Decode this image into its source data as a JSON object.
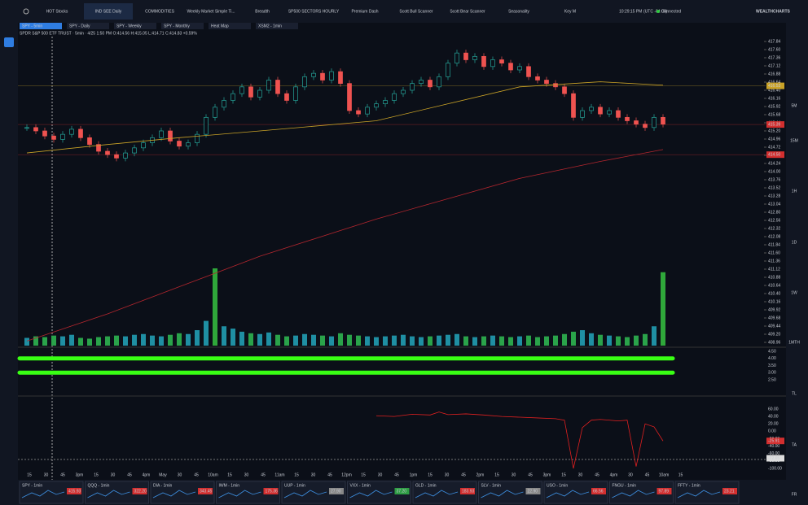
{
  "nav": {
    "tabs": [
      "HOT Stocks",
      "IND SEE Daily",
      "COMMODITIES",
      "Weekly Market Simple Ti...",
      "Breadth",
      "SP500 SECTORS HOURLY",
      "Premium Dash",
      "Scott Bull Scanner",
      "Scott Bear Scanner",
      "Seasonality",
      "Key M"
    ],
    "time": "10:29:15 PM",
    "timezone": "(UTC -04:00)",
    "status": "Connected",
    "brand": "WEALTHCHARTS"
  },
  "chart_tabs": [
    "SPY - 5min",
    "SPY - Daily",
    "SPY - Weekly",
    "SPY - Monthly",
    "Heat Map",
    "XSM2 - 1min"
  ],
  "info_line": "SPDR S&P 500 ETF TRUST · 5min · 4/25 1:50 PM O:414.56 H:415.05 L:414.71 C:414.83 +0.59%",
  "timeframes": [
    "5M",
    "15M",
    "1H",
    "1D",
    "1W",
    "1MTH",
    "TL",
    "TA",
    "FR"
  ],
  "chart_data": {
    "type": "candlestick",
    "closes": [
      415.3,
      415.2,
      415.05,
      414.95,
      415.1,
      415.25,
      415.0,
      414.8,
      414.6,
      414.5,
      414.4,
      414.55,
      414.7,
      414.85,
      415.0,
      415.2,
      414.9,
      414.75,
      414.85,
      415.1,
      415.6,
      415.9,
      416.1,
      416.3,
      416.5,
      416.2,
      416.4,
      416.7,
      416.3,
      416.1,
      416.5,
      416.8,
      416.9,
      416.7,
      416.95,
      416.6,
      415.8,
      415.7,
      415.9,
      416.0,
      416.1,
      416.3,
      416.4,
      416.6,
      416.7,
      416.5,
      416.8,
      417.2,
      417.5,
      417.3,
      417.4,
      417.1,
      417.3,
      417.2,
      417.0,
      417.1,
      416.8,
      416.7,
      416.6,
      416.5,
      416.3,
      415.6,
      415.8,
      415.9,
      415.7,
      415.8,
      415.6,
      415.5,
      415.4,
      415.3,
      415.6,
      415.4
    ],
    "volume": [
      10,
      12,
      11,
      13,
      12,
      14,
      10,
      9,
      11,
      12,
      13,
      12,
      14,
      15,
      13,
      12,
      14,
      16,
      15,
      20,
      32,
      100,
      25,
      22,
      18,
      16,
      15,
      17,
      14,
      12,
      13,
      15,
      14,
      13,
      12,
      16,
      14,
      13,
      12,
      11,
      12,
      13,
      14,
      12,
      11,
      12,
      13,
      14,
      15,
      12,
      11,
      12,
      13,
      12,
      11,
      12,
      13,
      11,
      12,
      13,
      15,
      18,
      20,
      16,
      14,
      13,
      12,
      11,
      13,
      15,
      25,
      95
    ],
    "ma_fast": {
      "x": [
        0,
        9,
        17,
        26,
        39,
        47,
        55,
        64,
        71
      ],
      "values": [
        414.55,
        414.8,
        415.0,
        415.2,
        415.5,
        416.0,
        416.5,
        416.65,
        416.55
      ]
    },
    "ma_slow": {
      "x": [
        0,
        9,
        17,
        26,
        39,
        47,
        55,
        64,
        71
      ],
      "values": [
        409.0,
        409.8,
        410.6,
        411.5,
        412.6,
        413.2,
        413.8,
        414.3,
        414.65
      ]
    },
    "yticks": [
      {
        "value": 417.84,
        "label": "417.84"
      },
      {
        "value": 417.6,
        "label": "417.60"
      },
      {
        "value": 417.36,
        "label": "417.36"
      },
      {
        "value": 417.12,
        "label": "417.12"
      },
      {
        "value": 416.88,
        "label": "416.88"
      },
      {
        "value": 416.64,
        "label": "416.64"
      },
      {
        "value": 416.4,
        "label": "416.40"
      },
      {
        "value": 416.16,
        "label": "416.16"
      },
      {
        "value": 415.92,
        "label": "415.92"
      },
      {
        "value": 415.68,
        "label": "415.68"
      },
      {
        "value": 415.44,
        "label": "415.44"
      },
      {
        "value": 415.2,
        "label": "415.20"
      },
      {
        "value": 414.96,
        "label": "414.96"
      },
      {
        "value": 414.72,
        "label": "414.72"
      },
      {
        "value": 414.48,
        "label": "414.48"
      },
      {
        "value": 414.24,
        "label": "414.24"
      },
      {
        "value": 414.0,
        "label": "414.00"
      },
      {
        "value": 413.76,
        "label": "413.76"
      },
      {
        "value": 413.52,
        "label": "413.52"
      },
      {
        "value": 413.28,
        "label": "413.28"
      },
      {
        "value": 413.04,
        "label": "413.04"
      },
      {
        "value": 412.8,
        "label": "412.80"
      },
      {
        "value": 412.56,
        "label": "412.56"
      },
      {
        "value": 412.32,
        "label": "412.32"
      },
      {
        "value": 412.08,
        "label": "412.08"
      },
      {
        "value": 411.84,
        "label": "411.84"
      },
      {
        "value": 411.6,
        "label": "411.60"
      },
      {
        "value": 411.36,
        "label": "411.36"
      },
      {
        "value": 411.12,
        "label": "411.12"
      },
      {
        "value": 410.88,
        "label": "410.88"
      },
      {
        "value": 410.64,
        "label": "410.64"
      },
      {
        "value": 410.4,
        "label": "410.40"
      },
      {
        "value": 410.16,
        "label": "410.16"
      },
      {
        "value": 409.92,
        "label": "409.92"
      },
      {
        "value": 409.68,
        "label": "409.68"
      },
      {
        "value": 409.44,
        "label": "409.44"
      },
      {
        "value": 409.2,
        "label": "409.20"
      },
      {
        "value": 408.96,
        "label": "408.96"
      }
    ],
    "ylim": [
      408.96,
      417.84
    ],
    "price_tags": [
      {
        "value": 416.53,
        "label": "416.53",
        "color": "#c9a227"
      },
      {
        "value": 415.39,
        "label": "415.39",
        "color": "#d32f2f"
      },
      {
        "value": 414.5,
        "label": "414.50",
        "color": "#d32f2f"
      }
    ],
    "x_labels": [
      "15",
      "30",
      "45",
      "3pm",
      "15",
      "30",
      "45",
      "4pm",
      "May",
      "30",
      "45",
      "10am",
      "15",
      "30",
      "45",
      "11am",
      "15",
      "30",
      "45",
      "12pm",
      "15",
      "30",
      "45",
      "1pm",
      "15",
      "30",
      "45",
      "2pm",
      "15",
      "30",
      "45",
      "3pm",
      "15",
      "30",
      "45",
      "4pm",
      "30",
      "45",
      "10am",
      "15"
    ],
    "pane1": {
      "ylim": [
        2.5,
        4.5
      ],
      "yticks": [
        {
          "value": 4.5,
          "label": "4.50"
        },
        {
          "value": 4.0,
          "label": "4.00"
        },
        {
          "value": 3.5,
          "label": "3.50"
        },
        {
          "value": 3.0,
          "label": "3.00"
        },
        {
          "value": 2.5,
          "label": "2.50"
        }
      ],
      "bars": [
        4.0,
        3.0
      ],
      "color": "#39ff14"
    },
    "pane2": {
      "ylim": [
        -100,
        60
      ],
      "yticks": [
        {
          "value": 60,
          "label": "60.00"
        },
        {
          "value": 40,
          "label": "40.00"
        },
        {
          "value": 20,
          "label": "20.00"
        },
        {
          "value": 0,
          "label": "0.00"
        },
        {
          "value": -20,
          "label": "-20.00"
        },
        {
          "value": -40,
          "label": "-40.00"
        },
        {
          "value": -60,
          "label": "-60.00"
        },
        {
          "value": -80,
          "label": "-80.00"
        },
        {
          "value": -100,
          "label": "-100.00"
        }
      ],
      "line": {
        "x": [
          39,
          41,
          43,
          45,
          46,
          47,
          49,
          51,
          53,
          55,
          57,
          59,
          60,
          61,
          62,
          63,
          64,
          66,
          67,
          68,
          69,
          70,
          71
        ],
        "values": [
          42,
          40,
          46,
          44,
          52,
          45,
          47,
          44,
          40,
          38,
          36,
          34,
          30,
          -100,
          10,
          30,
          32,
          28,
          30,
          -95,
          20,
          12,
          -26
        ]
      },
      "tags": [
        {
          "value": -25.91,
          "label": "-25.91"
        },
        {
          "value": -72.65,
          "label": "-72.65"
        }
      ]
    }
  },
  "tickers": [
    {
      "name": "SPY - 1min",
      "price": "415.93",
      "color": "#d32f2f"
    },
    {
      "name": "QQQ - 1min",
      "price": "322.20",
      "color": "#d32f2f"
    },
    {
      "name": "DIA - 1min",
      "price": "343.45",
      "color": "#d32f2f"
    },
    {
      "name": "IWM - 1min",
      "price": "175.36",
      "color": "#d32f2f"
    },
    {
      "name": "UUP - 1min",
      "price": "27.90",
      "color": "#888888"
    },
    {
      "name": "VXX - 1min",
      "price": "37.20",
      "color": "#2e9e44"
    },
    {
      "name": "GLD - 1min",
      "price": "183.93",
      "color": "#d32f2f"
    },
    {
      "name": "SLV - 1min",
      "price": "22.90",
      "color": "#888888"
    },
    {
      "name": "USO - 1min",
      "price": "66.56",
      "color": "#d32f2f"
    },
    {
      "name": "FNGU - 1min",
      "price": "97.89",
      "color": "#d32f2f"
    },
    {
      "name": "FFTY - 1min",
      "price": "23.21",
      "color": "#d32f2f"
    }
  ]
}
